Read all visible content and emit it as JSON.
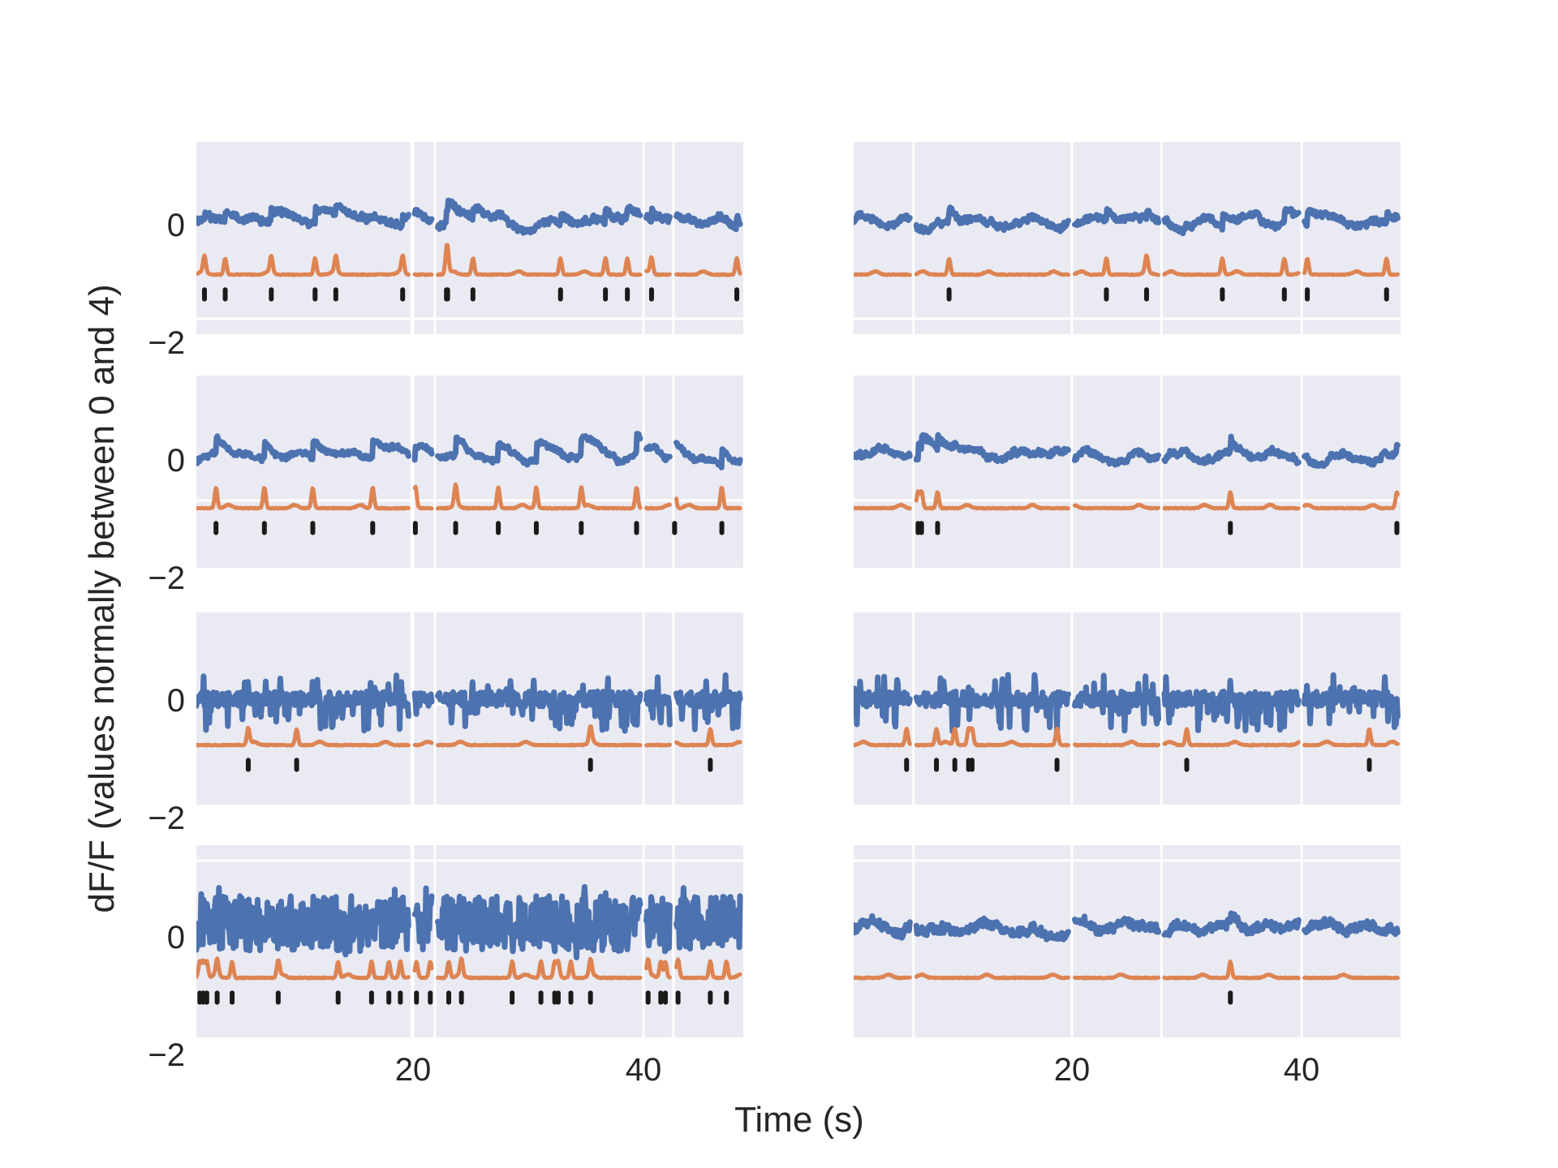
{
  "chart_data": {
    "type": "line",
    "layout": "4 rows x 2 columns of subplots",
    "xlabel": "Time (s)",
    "ylabel": "dF/F (values normally between 0 and 4)",
    "ytick_labels": [
      "0",
      "−2"
    ],
    "yticks": [
      0,
      -2
    ],
    "xtick_labels": [
      "20",
      "40"
    ],
    "xticks": [
      20,
      40
    ],
    "xlim": [
      1.1,
      48.7
    ],
    "ylim": [
      -2.1,
      1.45
    ],
    "grid": true,
    "colors": {
      "background": "#eaeaf2",
      "grid": "#ffffff",
      "dff": "#4c72b0",
      "inferred": "#dd8452",
      "spikes": "#1a1a1a",
      "text": "#262626"
    },
    "series_legend": [
      "dF/F trace (blue)",
      "inferred spike rate (orange, offset -1)",
      "detected spike times (black ticks)"
    ],
    "panels": [
      {
        "id": "row1-left",
        "segment_breaks": [
          19.9,
          21.9,
          40.0,
          42.6
        ],
        "style": "slow",
        "noise": 0.08,
        "spike_times": [
          1.9,
          3.7,
          7.7,
          11.5,
          13.3,
          19.1,
          22.9,
          23.0,
          25.2,
          32.8,
          36.7,
          38.6,
          40.7,
          48.1
        ]
      },
      {
        "id": "row1-right",
        "segment_breaks": [
          6.2,
          20.0,
          27.8,
          40.0
        ],
        "style": "slow",
        "noise": 0.07,
        "spike_times": [
          9.3,
          23.0,
          26.5,
          33.1,
          38.5,
          40.5,
          47.4
        ]
      },
      {
        "id": "row2-left",
        "segment_breaks": [
          19.9,
          21.9,
          40.0,
          42.6
        ],
        "style": "transient",
        "noise": 0.05,
        "spike_times": [
          2.9,
          7.1,
          11.3,
          16.5,
          20.2,
          23.7,
          27.4,
          30.7,
          34.6,
          39.4,
          42.7,
          46.8
        ]
      },
      {
        "id": "row2-right",
        "segment_breaks": [
          6.2,
          20.0,
          27.8,
          40.0
        ],
        "style": "slow",
        "noise": 0.07,
        "spike_times": [
          6.6,
          6.9,
          8.3,
          33.8,
          48.3
        ]
      },
      {
        "id": "row3-left",
        "segment_breaks": [
          19.9,
          21.9,
          40.0,
          42.6
        ],
        "style": "noisy-down",
        "noise": 0.22,
        "spike_times": [
          5.7,
          9.9,
          35.4,
          45.8
        ]
      },
      {
        "id": "row3-right",
        "segment_breaks": [
          6.2,
          20.0,
          27.8,
          40.0
        ],
        "style": "noisy-down",
        "noise": 0.26,
        "spike_times": [
          5.6,
          8.2,
          9.8,
          11.0,
          11.3,
          18.7,
          30.0,
          45.9
        ]
      },
      {
        "id": "row4-left",
        "segment_breaks": [
          19.9,
          21.9,
          40.0,
          42.6
        ],
        "style": "noisy",
        "noise": 0.32,
        "spike_times": [
          1.5,
          1.8,
          2.1,
          3.0,
          4.3,
          8.3,
          13.5,
          16.4,
          17.9,
          18.9,
          20.3,
          21.5,
          23.1,
          24.2,
          28.6,
          31.1,
          32.3,
          32.6,
          33.7,
          35.4,
          40.4,
          41.5,
          41.9,
          43.0,
          45.8,
          47.2
        ]
      },
      {
        "id": "row4-right",
        "segment_breaks": [
          6.2,
          20.0,
          27.8,
          40.0
        ],
        "style": "slow",
        "noise": 0.11,
        "spike_times": [
          33.8
        ]
      }
    ]
  }
}
